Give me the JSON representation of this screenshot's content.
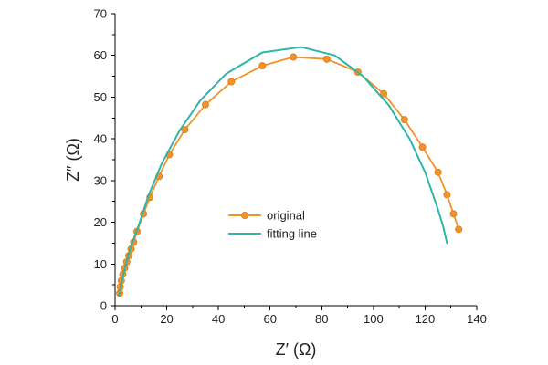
{
  "chart_data": {
    "type": "line",
    "title": "",
    "xlabel": "Z′ (Ω)",
    "ylabel": "Z″ (Ω)",
    "xlim": [
      0,
      140
    ],
    "ylim": [
      0,
      70
    ],
    "x_ticks": [
      0,
      20,
      40,
      60,
      80,
      100,
      120,
      140
    ],
    "y_ticks": [
      0,
      10,
      20,
      30,
      40,
      50,
      60,
      70
    ],
    "legend_position": "center",
    "series": [
      {
        "name": "original",
        "color": "#f0932b",
        "marker": "circle",
        "points": [
          [
            1.8,
            3.0
          ],
          [
            2.0,
            4.5
          ],
          [
            2.4,
            6.0
          ],
          [
            3.0,
            7.5
          ],
          [
            3.7,
            9.0
          ],
          [
            4.5,
            10.5
          ],
          [
            5.3,
            12.0
          ],
          [
            6.2,
            13.6
          ],
          [
            7.2,
            15.2
          ],
          [
            8.5,
            17.8
          ],
          [
            11.0,
            22.0
          ],
          [
            13.5,
            26.0
          ],
          [
            17.0,
            31.0
          ],
          [
            21.0,
            36.2
          ],
          [
            27.0,
            42.2
          ],
          [
            35.0,
            48.2
          ],
          [
            45.0,
            53.7
          ],
          [
            57.0,
            57.5
          ],
          [
            69.0,
            59.6
          ],
          [
            82.0,
            59.1
          ],
          [
            94.0,
            56.0
          ],
          [
            104.0,
            50.8
          ],
          [
            112.0,
            44.6
          ],
          [
            119.0,
            38.0
          ],
          [
            125.0,
            32.0
          ],
          [
            128.5,
            26.6
          ],
          [
            131.0,
            22.0
          ],
          [
            133.0,
            18.3
          ]
        ]
      },
      {
        "name": "fitting line",
        "color": "#2cb5a8",
        "marker": "none",
        "points": [
          [
            1.6,
            2.5
          ],
          [
            2.5,
            5.5
          ],
          [
            4.0,
            9.5
          ],
          [
            6.0,
            14.0
          ],
          [
            9.0,
            19.0
          ],
          [
            13.0,
            26.5
          ],
          [
            18.0,
            34.0
          ],
          [
            25.0,
            42.0
          ],
          [
            33.0,
            49.2
          ],
          [
            43.0,
            55.6
          ],
          [
            57.0,
            60.7
          ],
          [
            72.0,
            62.0
          ],
          [
            85.0,
            60.0
          ],
          [
            96.0,
            55.0
          ],
          [
            106.0,
            48.0
          ],
          [
            114.0,
            40.0
          ],
          [
            120.0,
            32.0
          ],
          [
            124.5,
            24.0
          ],
          [
            127.0,
            19.0
          ],
          [
            128.5,
            15.0
          ]
        ]
      }
    ]
  }
}
